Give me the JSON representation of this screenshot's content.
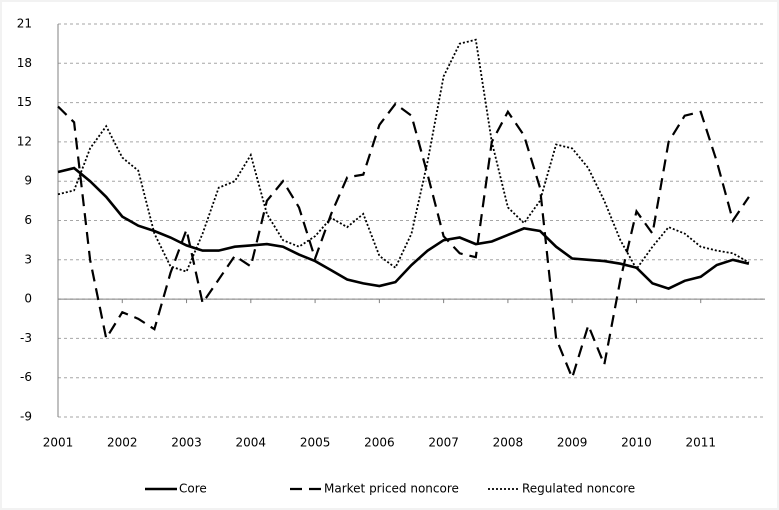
{
  "chart_data": {
    "type": "line",
    "x": [
      2001,
      2001.25,
      2001.5,
      2001.75,
      2002,
      2002.25,
      2002.5,
      2002.75,
      2003,
      2003.25,
      2003.5,
      2003.75,
      2004,
      2004.25,
      2004.5,
      2004.75,
      2005,
      2005.25,
      2005.5,
      2005.75,
      2006,
      2006.25,
      2006.5,
      2006.75,
      2007,
      2007.25,
      2007.5,
      2007.75,
      2008,
      2008.25,
      2008.5,
      2008.75,
      2009,
      2009.25,
      2009.5,
      2009.75,
      2010,
      2010.25,
      2010.5,
      2010.75,
      2011,
      2011.25,
      2011.5,
      2011.75
    ],
    "series": [
      {
        "name": "Core",
        "color": "#000000",
        "dash": "solid",
        "values": [
          9.7,
          10,
          9,
          7.8,
          6.3,
          5.6,
          5.2,
          4.7,
          4.1,
          3.7,
          3.7,
          4,
          4.1,
          4.2,
          4,
          3.4,
          2.9,
          2.2,
          1.5,
          1.2,
          1.0,
          1.3,
          2.6,
          3.7,
          4.5,
          4.7,
          4.2,
          4.4,
          4.9,
          5.4,
          5.2,
          4.0,
          3.1,
          3.0,
          2.9,
          2.7,
          2.4,
          1.2,
          0.8,
          1.4,
          1.7,
          2.6,
          3.0,
          2.7
        ]
      },
      {
        "name": "Market priced noncore",
        "color": "#000000",
        "dash": "dashed",
        "values": [
          14.7,
          13.5,
          3,
          -3,
          -1,
          -1.5,
          -2.3,
          2,
          5.3,
          -0.3,
          1.5,
          3.3,
          2.5,
          7.5,
          9,
          7,
          3.1,
          6.5,
          9.3,
          9.5,
          13.3,
          14.9,
          14,
          9.5,
          4.8,
          3.5,
          3.2,
          12,
          14.3,
          12.5,
          8.5,
          -3,
          -6,
          -2,
          -5,
          1.5,
          6.7,
          5,
          12,
          14,
          14.3,
          10.5,
          6,
          7.8
        ]
      },
      {
        "name": "Regulated noncore",
        "color": "#000000",
        "dash": "dotted",
        "values": [
          8,
          8.3,
          11.5,
          13.2,
          10.8,
          9.8,
          5,
          2.5,
          2.1,
          5,
          8.5,
          9,
          11,
          6.5,
          4.5,
          4,
          4.8,
          6.2,
          5.5,
          6.5,
          3.3,
          2.4,
          5,
          10.5,
          17,
          19.5,
          19.8,
          12,
          7,
          5.8,
          7.5,
          11.8,
          11.5,
          10,
          7.5,
          4.5,
          2.3,
          4,
          5.5,
          5,
          4,
          3.7,
          3.5,
          2.8
        ]
      }
    ],
    "xlim": [
      2001,
      2012
    ],
    "xticks": [
      2001,
      2002,
      2003,
      2004,
      2005,
      2006,
      2007,
      2008,
      2009,
      2010,
      2011
    ],
    "ylim": [
      -9,
      21
    ],
    "yticks": [
      -9,
      -6,
      -3,
      0,
      3,
      6,
      9,
      12,
      15,
      18,
      21
    ],
    "grid": true,
    "legend": "bottom"
  }
}
